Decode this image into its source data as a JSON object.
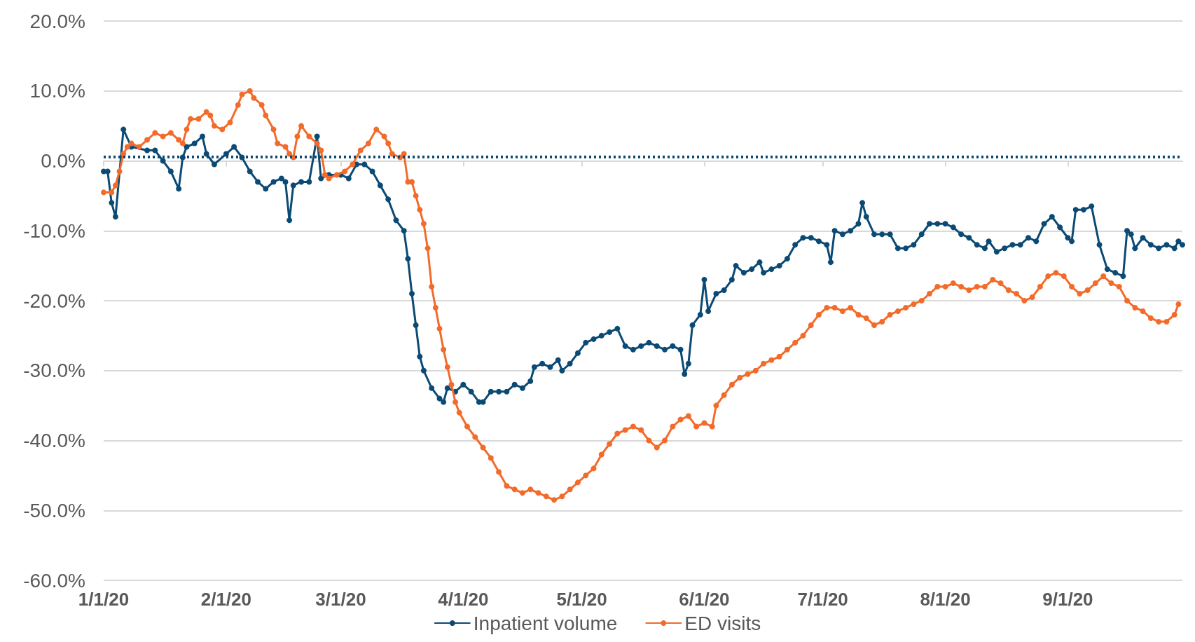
{
  "chart_data": {
    "type": "line",
    "marker": "circle",
    "line_style": "solid",
    "grid": "y",
    "legend": "bottom",
    "xlim": [
      "2020-01-01",
      "2020-09-30"
    ],
    "xticks": [
      {
        "value": "2020-01-01",
        "label": "1/1/20"
      },
      {
        "value": "2020-02-01",
        "label": "2/1/20"
      },
      {
        "value": "2020-03-01",
        "label": "3/1/20"
      },
      {
        "value": "2020-04-01",
        "label": "4/1/20"
      },
      {
        "value": "2020-05-01",
        "label": "5/1/20"
      },
      {
        "value": "2020-06-01",
        "label": "6/1/20"
      },
      {
        "value": "2020-07-01",
        "label": "7/1/20"
      },
      {
        "value": "2020-08-01",
        "label": "8/1/20"
      },
      {
        "value": "2020-09-01",
        "label": "9/1/20"
      }
    ],
    "ylim": [
      -60,
      20
    ],
    "yticks": [
      {
        "value": -60,
        "label": "-60.0%"
      },
      {
        "value": -50,
        "label": "-50.0%"
      },
      {
        "value": -40,
        "label": "-40.0%"
      },
      {
        "value": -30,
        "label": "-30.0%"
      },
      {
        "value": -20,
        "label": "-20.0%"
      },
      {
        "value": -10,
        "label": "-10.0%"
      },
      {
        "value": 0,
        "label": "0.0%"
      },
      {
        "value": 10,
        "label": "10.0%"
      },
      {
        "value": 20,
        "label": "20.0%"
      }
    ],
    "ref_lines": [
      {
        "axis": "y",
        "value": 0.6,
        "label": null,
        "color": "#0b4a74",
        "line_style": "dotted"
      }
    ],
    "series": [
      {
        "name": "Inpatient volume",
        "color": "#0b4a74",
        "x": [
          "2020-01-01",
          "2020-01-02",
          "2020-01-03",
          "2020-01-04",
          "2020-01-06",
          "2020-01-08",
          "2020-01-12",
          "2020-01-14",
          "2020-01-16",
          "2020-01-18",
          "2020-01-20",
          "2020-01-21",
          "2020-01-22",
          "2020-01-24",
          "2020-01-26",
          "2020-01-27",
          "2020-01-29",
          "2020-02-01",
          "2020-02-03",
          "2020-02-05",
          "2020-02-07",
          "2020-02-09",
          "2020-02-11",
          "2020-02-13",
          "2020-02-15",
          "2020-02-16",
          "2020-02-17",
          "2020-02-18",
          "2020-02-20",
          "2020-02-22",
          "2020-02-24",
          "2020-02-25",
          "2020-02-27",
          "2020-03-01",
          "2020-03-03",
          "2020-03-05",
          "2020-03-07",
          "2020-03-09",
          "2020-03-11",
          "2020-03-13",
          "2020-03-15",
          "2020-03-17",
          "2020-03-18",
          "2020-03-19",
          "2020-03-20",
          "2020-03-21",
          "2020-03-22",
          "2020-03-24",
          "2020-03-26",
          "2020-03-27",
          "2020-03-28",
          "2020-03-30",
          "2020-04-01",
          "2020-04-03",
          "2020-04-05",
          "2020-04-06",
          "2020-04-08",
          "2020-04-10",
          "2020-04-12",
          "2020-04-14",
          "2020-04-16",
          "2020-04-18",
          "2020-04-19",
          "2020-04-21",
          "2020-04-23",
          "2020-04-25",
          "2020-04-26",
          "2020-04-28",
          "2020-04-30",
          "2020-05-02",
          "2020-05-04",
          "2020-05-06",
          "2020-05-08",
          "2020-05-10",
          "2020-05-12",
          "2020-05-14",
          "2020-05-16",
          "2020-05-18",
          "2020-05-20",
          "2020-05-22",
          "2020-05-24",
          "2020-05-26",
          "2020-05-27",
          "2020-05-28",
          "2020-05-29",
          "2020-05-31",
          "2020-06-01",
          "2020-06-02",
          "2020-06-04",
          "2020-06-06",
          "2020-06-08",
          "2020-06-09",
          "2020-06-11",
          "2020-06-13",
          "2020-06-15",
          "2020-06-16",
          "2020-06-18",
          "2020-06-20",
          "2020-06-22",
          "2020-06-24",
          "2020-06-26",
          "2020-06-28",
          "2020-06-30",
          "2020-07-02",
          "2020-07-03",
          "2020-07-04",
          "2020-07-06",
          "2020-07-08",
          "2020-07-10",
          "2020-07-11",
          "2020-07-12",
          "2020-07-14",
          "2020-07-16",
          "2020-07-18",
          "2020-07-20",
          "2020-07-22",
          "2020-07-24",
          "2020-07-26",
          "2020-07-28",
          "2020-07-30",
          "2020-08-01",
          "2020-08-03",
          "2020-08-05",
          "2020-08-07",
          "2020-08-09",
          "2020-08-11",
          "2020-08-12",
          "2020-08-14",
          "2020-08-16",
          "2020-08-18",
          "2020-08-20",
          "2020-08-22",
          "2020-08-24",
          "2020-08-26",
          "2020-08-28",
          "2020-08-30",
          "2020-09-01",
          "2020-09-02",
          "2020-09-03",
          "2020-09-05",
          "2020-09-07",
          "2020-09-09",
          "2020-09-11",
          "2020-09-13",
          "2020-09-15",
          "2020-09-16",
          "2020-09-17",
          "2020-09-18",
          "2020-09-20",
          "2020-09-22",
          "2020-09-24",
          "2020-09-26",
          "2020-09-28",
          "2020-09-29",
          "2020-09-30"
        ],
        "values": [
          -1.5,
          -1.5,
          -6,
          -8,
          4.5,
          2,
          1.5,
          1.5,
          0,
          -1.5,
          -4,
          0.5,
          2,
          2.5,
          3.5,
          1,
          -0.5,
          1,
          2,
          0.5,
          -1.5,
          -3,
          -4,
          -3,
          -2.5,
          -3,
          -8.5,
          -3.5,
          -3,
          -3,
          3.5,
          -2.5,
          -2,
          -2,
          -2.5,
          -0.5,
          -0.5,
          -1.5,
          -3.5,
          -5.5,
          -8.5,
          -10,
          -14,
          -19,
          -23.5,
          -28,
          -30,
          -32.5,
          -34,
          -34.5,
          -32.5,
          -33,
          -32,
          -33,
          -34.5,
          -34.5,
          -33,
          -33,
          -33,
          -32,
          -32.5,
          -31.5,
          -29.5,
          -29,
          -29.5,
          -28.5,
          -30,
          -29,
          -27.5,
          -26,
          -25.5,
          -25,
          -24.5,
          -24,
          -26.5,
          -27,
          -26.5,
          -26,
          -26.5,
          -27,
          -26.5,
          -27,
          -30.5,
          -29,
          -23.5,
          -22,
          -17,
          -21.5,
          -19,
          -18.5,
          -17,
          -15,
          -16,
          -15.5,
          -14.5,
          -16,
          -15.5,
          -15,
          -14,
          -12,
          -11,
          -11,
          -11.5,
          -12,
          -14.5,
          -10,
          -10.5,
          -10,
          -9,
          -6,
          -8,
          -10.5,
          -10.5,
          -10.5,
          -12.5,
          -12.5,
          -12,
          -10.5,
          -9,
          -9,
          -9,
          -9.5,
          -10.5,
          -11,
          -12,
          -12.5,
          -11.5,
          -13,
          -12.5,
          -12,
          -12,
          -11,
          -11.5,
          -9,
          -8,
          -9.5,
          -11,
          -11.5,
          -7,
          -7,
          -6.5,
          -12,
          -15.5,
          -16,
          -16.5,
          -10,
          -10.5,
          -12.5,
          -11,
          -12,
          -12.5,
          -12,
          -12.5,
          -11.5,
          -12
        ]
      },
      {
        "name": "ED visits",
        "color": "#f26b2b",
        "x": [
          "2020-01-01",
          "2020-01-03",
          "2020-01-04",
          "2020-01-05",
          "2020-01-06",
          "2020-01-07",
          "2020-01-08",
          "2020-01-10",
          "2020-01-12",
          "2020-01-14",
          "2020-01-16",
          "2020-01-18",
          "2020-01-20",
          "2020-01-21",
          "2020-01-22",
          "2020-01-23",
          "2020-01-25",
          "2020-01-27",
          "2020-01-28",
          "2020-01-29",
          "2020-01-31",
          "2020-02-02",
          "2020-02-04",
          "2020-02-05",
          "2020-02-07",
          "2020-02-08",
          "2020-02-10",
          "2020-02-11",
          "2020-02-13",
          "2020-02-14",
          "2020-02-16",
          "2020-02-17",
          "2020-02-18",
          "2020-02-19",
          "2020-02-20",
          "2020-02-22",
          "2020-02-24",
          "2020-02-25",
          "2020-02-26",
          "2020-02-27",
          "2020-02-29",
          "2020-03-02",
          "2020-03-04",
          "2020-03-06",
          "2020-03-08",
          "2020-03-10",
          "2020-03-12",
          "2020-03-13",
          "2020-03-14",
          "2020-03-16",
          "2020-03-17",
          "2020-03-18",
          "2020-03-19",
          "2020-03-20",
          "2020-03-21",
          "2020-03-22",
          "2020-03-23",
          "2020-03-24",
          "2020-03-25",
          "2020-03-26",
          "2020-03-27",
          "2020-03-28",
          "2020-03-29",
          "2020-03-30",
          "2020-03-31",
          "2020-04-02",
          "2020-04-04",
          "2020-04-06",
          "2020-04-08",
          "2020-04-10",
          "2020-04-12",
          "2020-04-14",
          "2020-04-16",
          "2020-04-18",
          "2020-04-20",
          "2020-04-22",
          "2020-04-24",
          "2020-04-26",
          "2020-04-28",
          "2020-04-30",
          "2020-05-02",
          "2020-05-04",
          "2020-05-06",
          "2020-05-08",
          "2020-05-10",
          "2020-05-12",
          "2020-05-14",
          "2020-05-16",
          "2020-05-18",
          "2020-05-20",
          "2020-05-22",
          "2020-05-24",
          "2020-05-26",
          "2020-05-28",
          "2020-05-30",
          "2020-06-01",
          "2020-06-03",
          "2020-06-04",
          "2020-06-06",
          "2020-06-08",
          "2020-06-10",
          "2020-06-12",
          "2020-06-14",
          "2020-06-16",
          "2020-06-18",
          "2020-06-20",
          "2020-06-22",
          "2020-06-24",
          "2020-06-26",
          "2020-06-28",
          "2020-06-30",
          "2020-07-02",
          "2020-07-04",
          "2020-07-06",
          "2020-07-08",
          "2020-07-10",
          "2020-07-12",
          "2020-07-14",
          "2020-07-16",
          "2020-07-18",
          "2020-07-20",
          "2020-07-22",
          "2020-07-24",
          "2020-07-26",
          "2020-07-28",
          "2020-07-30",
          "2020-08-01",
          "2020-08-03",
          "2020-08-05",
          "2020-08-07",
          "2020-08-09",
          "2020-08-11",
          "2020-08-13",
          "2020-08-15",
          "2020-08-17",
          "2020-08-19",
          "2020-08-21",
          "2020-08-23",
          "2020-08-25",
          "2020-08-27",
          "2020-08-29",
          "2020-08-31",
          "2020-09-02",
          "2020-09-04",
          "2020-09-06",
          "2020-09-08",
          "2020-09-10",
          "2020-09-12",
          "2020-09-14",
          "2020-09-16",
          "2020-09-18",
          "2020-09-20",
          "2020-09-22",
          "2020-09-24",
          "2020-09-26",
          "2020-09-28",
          "2020-09-29"
        ],
        "values": [
          -4.5,
          -4.5,
          -3.5,
          -1.5,
          1,
          2,
          2.5,
          2,
          3,
          4,
          3.5,
          4,
          3,
          2.5,
          4.5,
          6,
          6,
          7,
          6.5,
          5,
          4.5,
          5.5,
          8,
          9.5,
          10,
          9,
          8,
          6.5,
          4.5,
          2.5,
          2,
          1,
          0.5,
          3.5,
          5,
          3.5,
          2.5,
          1.5,
          -2,
          -2.5,
          -2,
          -1.5,
          -0.5,
          1.5,
          2.5,
          4.5,
          3.5,
          2.5,
          1,
          0.5,
          1,
          -3,
          -3,
          -5,
          -7,
          -9,
          -12.5,
          -18,
          -21,
          -24,
          -27,
          -29.5,
          -32,
          -34.5,
          -36,
          -38,
          -39.5,
          -41,
          -42.5,
          -44.5,
          -46.5,
          -47,
          -47.5,
          -47,
          -47.5,
          -48,
          -48.5,
          -48,
          -47,
          -46,
          -45,
          -44,
          -42,
          -40.5,
          -39,
          -38.5,
          -38,
          -38.5,
          -40,
          -41,
          -40,
          -38,
          -37,
          -36.5,
          -38,
          -37.5,
          -38,
          -35,
          -33.5,
          -32,
          -31,
          -30.5,
          -30,
          -29,
          -28.5,
          -28,
          -27,
          -26,
          -25,
          -23.5,
          -22,
          -21,
          -21,
          -21.5,
          -21,
          -22,
          -22.5,
          -23.5,
          -23,
          -22,
          -21.5,
          -21,
          -20.5,
          -20,
          -19,
          -18,
          -18,
          -17.5,
          -18,
          -18.5,
          -18,
          -18,
          -17,
          -17.5,
          -18.5,
          -19,
          -20,
          -19.5,
          -18,
          -16.5,
          -16,
          -16.5,
          -18,
          -19,
          -18.5,
          -17.5,
          -16.5,
          -17.5,
          -18,
          -20,
          -21,
          -21.5,
          -22.5,
          -23,
          -23,
          -22,
          -20.5
        ]
      }
    ]
  }
}
